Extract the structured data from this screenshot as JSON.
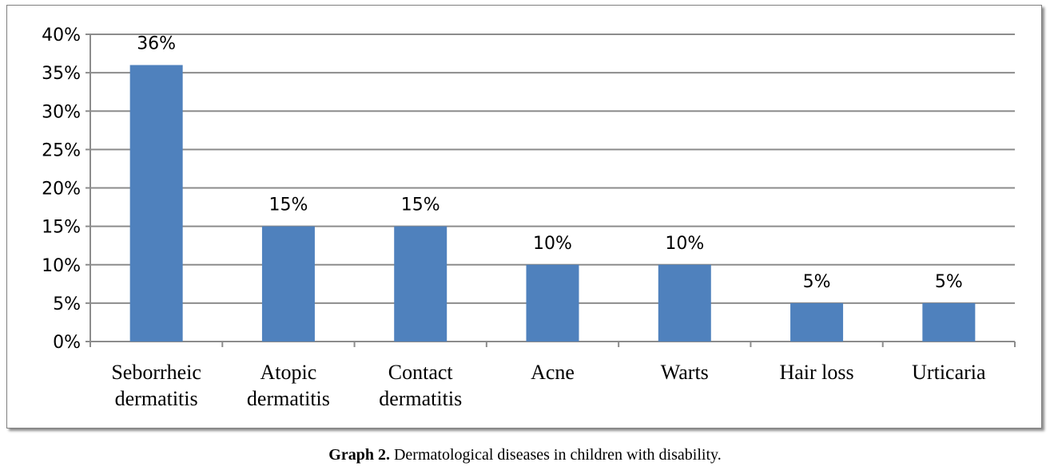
{
  "caption": {
    "label": "Graph 2.",
    "text": " Dermatological diseases in children with disability."
  },
  "chart_data": {
    "type": "bar",
    "categories": [
      [
        "Seborrheic",
        "dermatitis"
      ],
      [
        "Atopic",
        "dermatitis"
      ],
      [
        "Contact",
        "dermatitis"
      ],
      [
        "Acne"
      ],
      [
        "Warts"
      ],
      [
        "Hair loss"
      ],
      [
        "Urticaria"
      ]
    ],
    "values": [
      36,
      15,
      15,
      10,
      10,
      5,
      5
    ],
    "data_labels": [
      "36%",
      "15%",
      "15%",
      "10%",
      "10%",
      "5%",
      "5%"
    ],
    "ylim": [
      0,
      40
    ],
    "ytick_step": 5,
    "ytick_labels": [
      "0%",
      "5%",
      "10%",
      "15%",
      "20%",
      "25%",
      "30%",
      "35%",
      "40%"
    ],
    "grid": true,
    "bar_color": "#4f81bd",
    "grid_color": "#8c8c8c"
  }
}
